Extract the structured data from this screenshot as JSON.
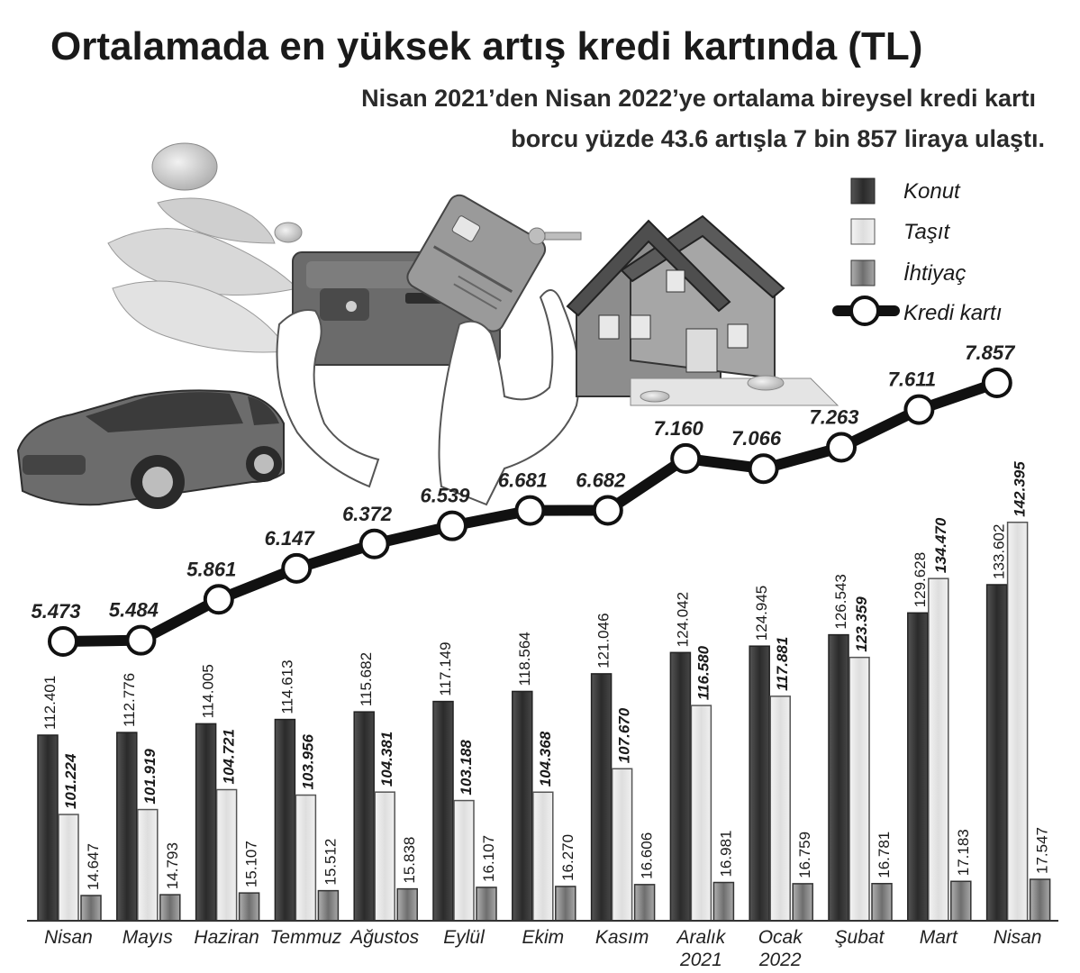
{
  "title": "Ortalamada en yüksek artış kredi kartında (TL)",
  "subtitle_line1": "Nisan 2021’den Nisan 2022’ye ortalama bireysel kredi kartı",
  "subtitle_line2": "borcu yüzde 43.6 artışla 7 bin 857 liraya ulaştı.",
  "colors": {
    "konut": "#3a3a3a",
    "tasit": "#e6e6e6",
    "ihtiyac": "#8a8a8a",
    "line": "#111111",
    "background": "#ffffff"
  },
  "chart_data": {
    "type": "bar",
    "categories": [
      "Nisan",
      "Mayıs",
      "Haziran",
      "Temmuz",
      "Ağustos",
      "Eylül",
      "Ekim",
      "Kasım",
      "Aralık",
      "Ocak",
      "Şubat",
      "Mart",
      "Nisan"
    ],
    "category_sublabels": [
      "",
      "",
      "",
      "",
      "",
      "",
      "",
      "",
      "2021",
      "2022",
      "",
      "",
      ""
    ],
    "series": [
      {
        "name": "Konut",
        "labels": [
          "112.401",
          "112.776",
          "114.005",
          "114.613",
          "115.682",
          "117.149",
          "118.564",
          "121.046",
          "124.042",
          "124.945",
          "126.543",
          "129.628",
          "133.602"
        ],
        "values": [
          112401,
          112776,
          114005,
          114613,
          115682,
          117149,
          118564,
          121046,
          124042,
          124945,
          126543,
          129628,
          133602
        ]
      },
      {
        "name": "Taşıt",
        "labels": [
          "101.224",
          "101.919",
          "104.721",
          "103.956",
          "104.381",
          "103.188",
          "104.368",
          "107.670",
          "116.580",
          "117.881",
          "123.359",
          "134.470",
          "142.395"
        ],
        "values": [
          101224,
          101919,
          104721,
          103956,
          104381,
          103188,
          104368,
          107670,
          116580,
          117881,
          123359,
          134470,
          142395
        ]
      },
      {
        "name": "İhtiyaç",
        "labels": [
          "14.647",
          "14.793",
          "15.107",
          "15.512",
          "15.838",
          "16.107",
          "16.270",
          "16.606",
          "16.981",
          "16.759",
          "16.781",
          "17.183",
          "17.547"
        ],
        "values": [
          14647,
          14793,
          15107,
          15512,
          15838,
          16107,
          16270,
          16606,
          16981,
          16759,
          16781,
          17183,
          17547
        ]
      }
    ],
    "line_series": {
      "name": "Kredi kartı",
      "type": "line",
      "labels": [
        "5.473",
        "5.484",
        "5.861",
        "6.147",
        "6.372",
        "6.539",
        "6.681",
        "6.682",
        "7.160",
        "7.066",
        "7.263",
        "7.611",
        "7.857"
      ],
      "values": [
        5473,
        5484,
        5861,
        6147,
        6372,
        6539,
        6681,
        6682,
        7160,
        7066,
        7263,
        7611,
        7857
      ]
    },
    "legend": [
      "Konut",
      "Taşıt",
      "İhtiyaç",
      "Kredi kartı"
    ],
    "legend_placement": "top-right",
    "grid": false
  },
  "illustration": {
    "items": [
      "money-icon",
      "wallet-icon",
      "credit-card-icon",
      "key-icon",
      "house-icon",
      "car-icon"
    ]
  }
}
